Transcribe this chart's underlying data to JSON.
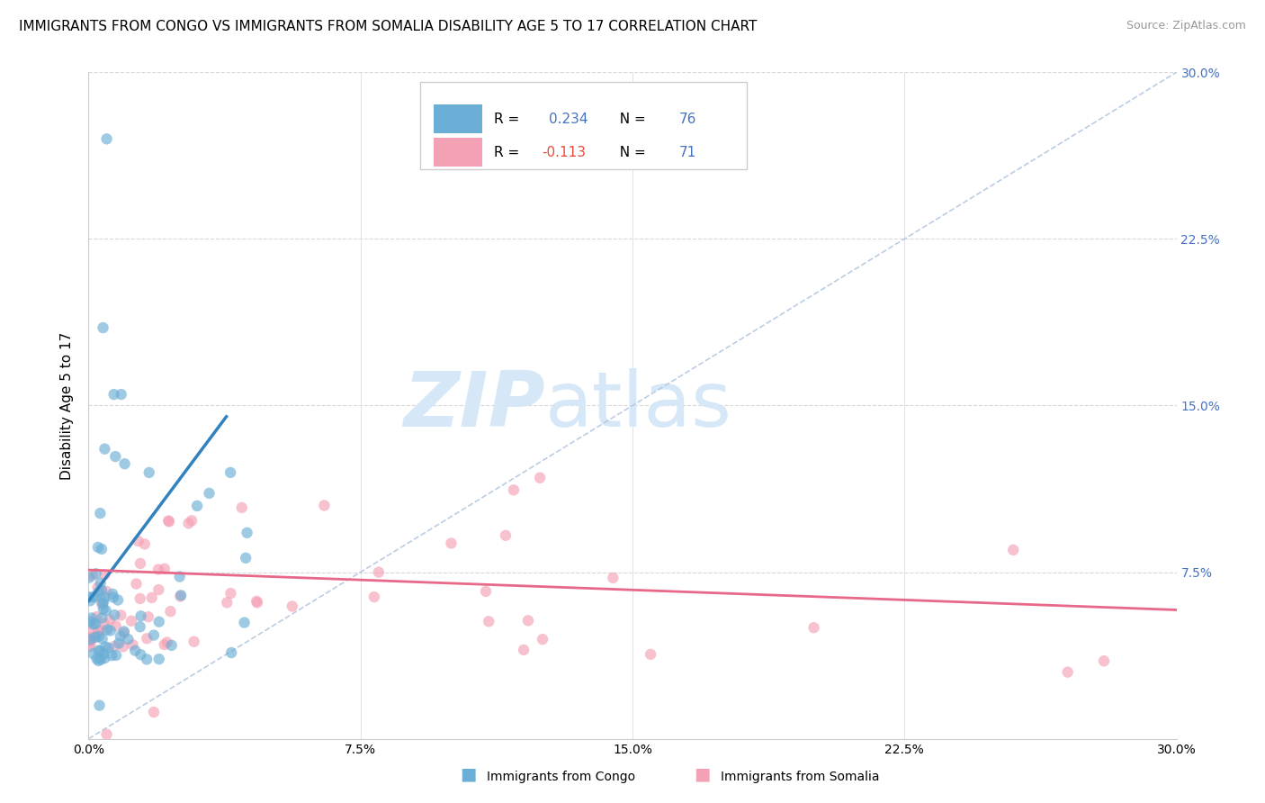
{
  "title": "IMMIGRANTS FROM CONGO VS IMMIGRANTS FROM SOMALIA DISABILITY AGE 5 TO 17 CORRELATION CHART",
  "source": "Source: ZipAtlas.com",
  "ylabel": "Disability Age 5 to 17",
  "xlim": [
    0.0,
    0.3
  ],
  "ylim": [
    0.0,
    0.3
  ],
  "xtick_labels": [
    "0.0%",
    "7.5%",
    "15.0%",
    "22.5%",
    "30.0%"
  ],
  "xtick_values": [
    0.0,
    0.075,
    0.15,
    0.225,
    0.3
  ],
  "right_ytick_labels": [
    "7.5%",
    "15.0%",
    "22.5%",
    "30.0%"
  ],
  "right_ytick_values": [
    0.075,
    0.15,
    0.225,
    0.3
  ],
  "congo_color": "#6baed6",
  "somalia_color": "#f4a0b5",
  "congo_line_color": "#3182bd",
  "somalia_line_color": "#e8688a",
  "diagonal_color": "#b0c4de",
  "R_congo": 0.234,
  "N_congo": 76,
  "R_somalia": -0.113,
  "N_somalia": 71,
  "legend_N_color": "#4472c4",
  "legend_R_pos_color": "#4472c4",
  "legend_R_neg_color": "#e74c3c",
  "watermark_zip": "ZIP",
  "watermark_atlas": "atlas",
  "watermark_color": "#d6e8f7",
  "background_color": "#ffffff",
  "grid_color": "#d8d8d8",
  "title_fontsize": 11,
  "axis_label_fontsize": 11,
  "tick_fontsize": 10,
  "congo_line_x": [
    0.0,
    0.038
  ],
  "congo_line_y": [
    0.062,
    0.145
  ],
  "somalia_line_x": [
    0.0,
    0.3
  ],
  "somalia_line_y": [
    0.076,
    0.058
  ]
}
